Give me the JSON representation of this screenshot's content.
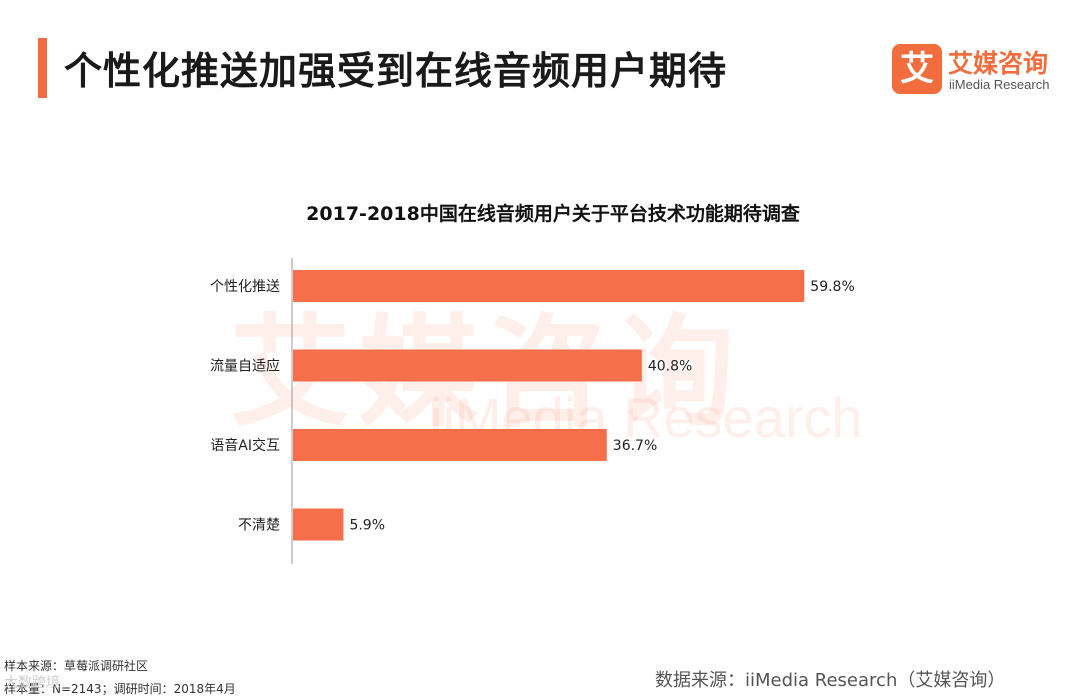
{
  "header": {
    "title": "个性化推送加强受到在线音频用户期待"
  },
  "brand": {
    "mark": "艾",
    "name": "艾媒咨询",
    "sub": "iiMedia Research"
  },
  "watermark": {
    "cn": "艾媒咨询",
    "en": "iiMedia Research"
  },
  "colors": {
    "accent": "#f26d3d",
    "bar": "#f5704a",
    "axis": "#999999"
  },
  "chart_data": {
    "type": "bar",
    "orientation": "horizontal",
    "title": "2017-2018中国在线音频用户关于平台技术功能期待调查",
    "categories": [
      "个性化推送",
      "流量自适应",
      "语音AI交互",
      "不清楚"
    ],
    "values": [
      59.8,
      40.8,
      36.7,
      5.9
    ],
    "data_labels": [
      "59.8%",
      "40.8%",
      "36.7%",
      "5.9%"
    ],
    "xlim": [
      0,
      60
    ],
    "grid": false,
    "legend": "none"
  },
  "footer": {
    "sample_source": "样本来源：草莓派调研社区",
    "sample_info": "样本量：N=2143；调研时间：2018年4月",
    "data_source": "数据来源：iiMedia Research（艾媒咨询）",
    "corner_mark": "大数跨境"
  }
}
